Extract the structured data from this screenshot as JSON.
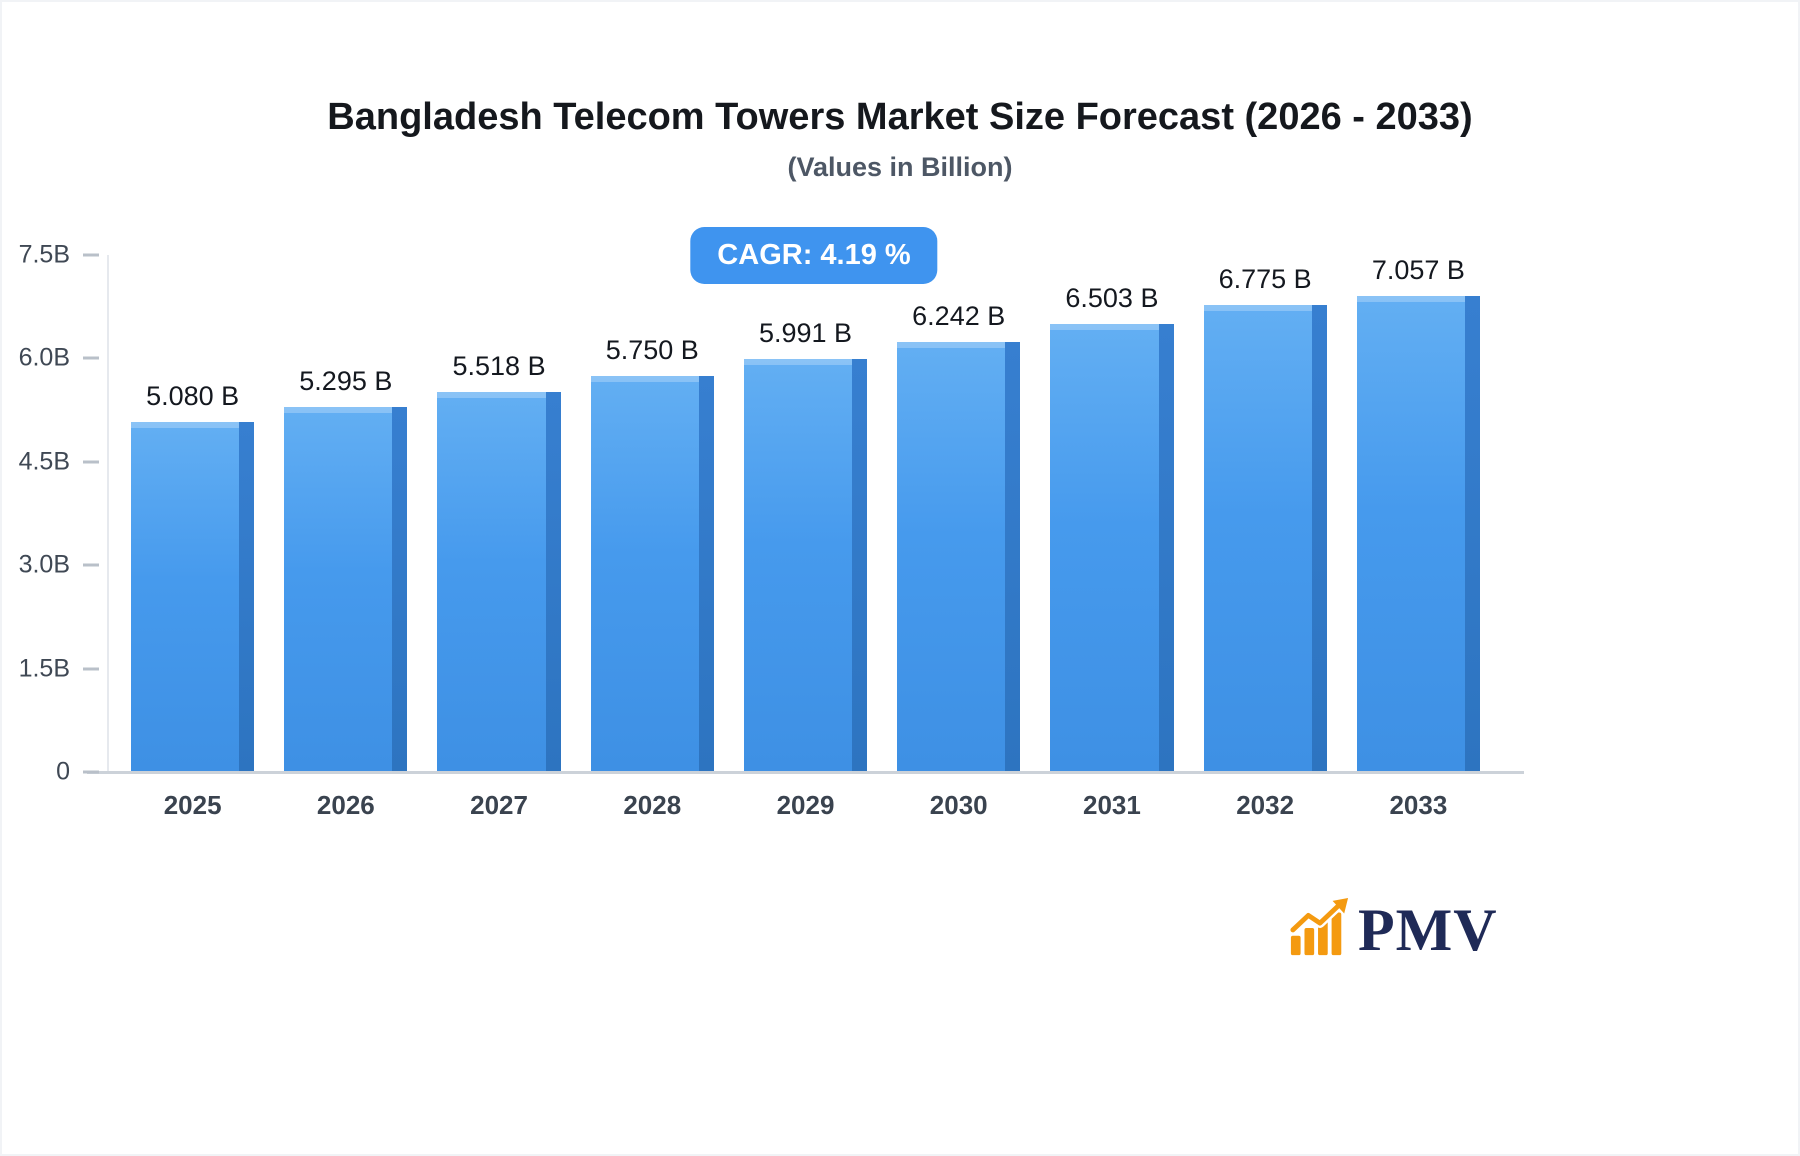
{
  "title": "Bangladesh Telecom Towers Market Size Forecast (2026 - 2033)",
  "subtitle": "(Values in Billion)",
  "cagr_badge": "CAGR: 4.19 %",
  "chart_data": {
    "type": "bar",
    "title": "Bangladesh Telecom Towers Market Size Forecast (2026 - 2033)",
    "subtitle": "(Values in Billion)",
    "categories": [
      "2025",
      "2026",
      "2027",
      "2028",
      "2029",
      "2030",
      "2031",
      "2032",
      "2033"
    ],
    "values": [
      5.08,
      5.295,
      5.518,
      5.75,
      5.991,
      6.242,
      6.503,
      6.775,
      7.057
    ],
    "value_labels": [
      "5.080 B",
      "5.295 B",
      "5.518 B",
      "5.750 B",
      "5.991 B",
      "6.242 B",
      "6.503 B",
      "6.775 B",
      "7.057 B"
    ],
    "cagr": "4.19 %",
    "xlabel": "",
    "ylabel": "",
    "ylim": [
      0,
      7.5
    ],
    "yticks": [
      {
        "label": "7.5B",
        "value": 7.5
      },
      {
        "label": "6.0B",
        "value": 6.0
      },
      {
        "label": "4.5B",
        "value": 4.5
      },
      {
        "label": "3.0B",
        "value": 3.0
      },
      {
        "label": "1.5B",
        "value": 1.5
      },
      {
        "label": "0",
        "value": 0
      }
    ],
    "grid": false,
    "legend": "none",
    "bar_color_top": "#63aff3",
    "bar_color_bottom": "#3e90e4",
    "bar_side_color": "#2d74c0"
  },
  "badge_color": "#3f94ef",
  "branding": {
    "logo_text": "PMV",
    "logo_text_color": "#1f2a57",
    "logo_icon_color": "#f49a10",
    "logo_icon": "bar-chart-with-arrow"
  }
}
